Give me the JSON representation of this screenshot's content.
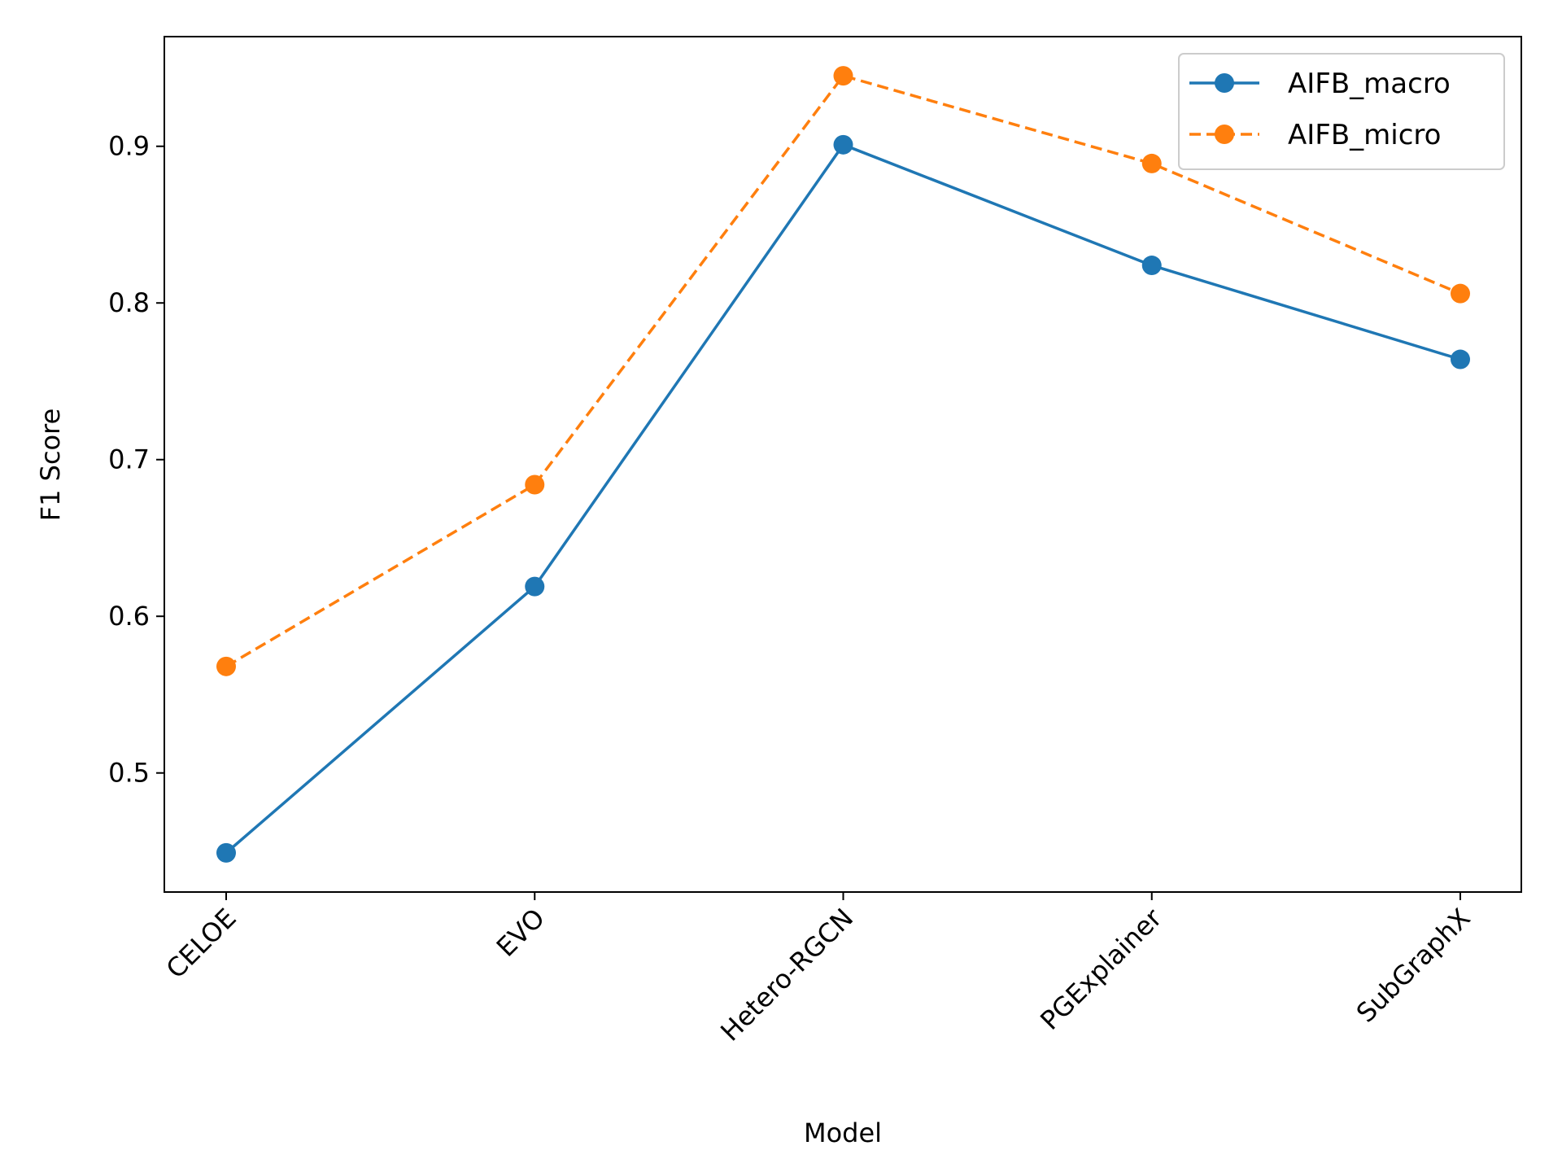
{
  "chart_data": {
    "type": "line",
    "categories": [
      "CELOE",
      "EVO",
      "Hetero-RGCN",
      "PGExplainer",
      "SubGraphX"
    ],
    "series": [
      {
        "name": "AIFB_macro",
        "values": [
          0.449,
          0.619,
          0.901,
          0.824,
          0.764
        ],
        "color": "#1f77b4",
        "style": "solid"
      },
      {
        "name": "AIFB_micro",
        "values": [
          0.568,
          0.684,
          0.945,
          0.889,
          0.806
        ],
        "color": "#ff7f0e",
        "style": "dashed"
      }
    ],
    "title": "",
    "xlabel": "Model",
    "ylabel": "F1 Score",
    "ylim": [
      0.424,
      0.97
    ],
    "yticks": [
      0.5,
      0.6,
      0.7,
      0.8,
      0.9
    ],
    "ytick_labels": [
      "0.5",
      "0.6",
      "0.7",
      "0.8",
      "0.9"
    ],
    "grid": false,
    "legend_position": "upper right"
  }
}
